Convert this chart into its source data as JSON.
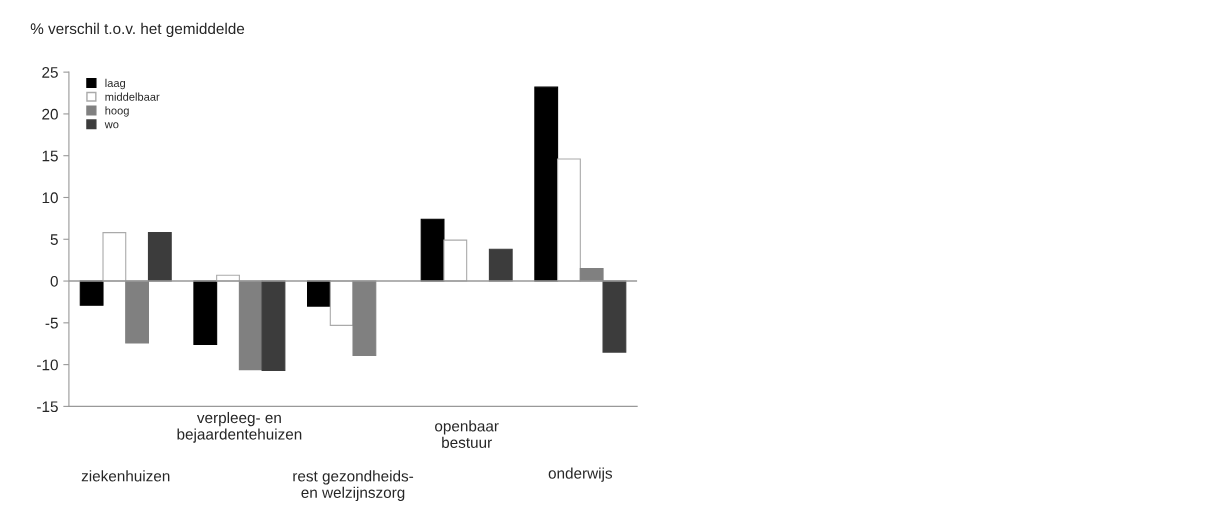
{
  "chart_data": {
    "type": "bar",
    "ylabel": "% verschil t.o.v. het gemiddelde",
    "categories": [
      "ziekenhuizen",
      "verpleeg- en\nbejaardentehuizen",
      "rest gezondheids-\nen welzijnszorg",
      "openbaar\nbestuur",
      "onderwijs"
    ],
    "series": [
      {
        "name": "laag",
        "color": "#000000",
        "values": [
          -2.9,
          -7.6,
          -3.0,
          7.4,
          23.2
        ]
      },
      {
        "name": "middelbaar",
        "color": "#ffffff",
        "values": [
          5.8,
          0.7,
          -5.3,
          4.9,
          14.6
        ]
      },
      {
        "name": "hoog",
        "color": "#808080",
        "values": [
          -7.4,
          -10.6,
          -8.9,
          null,
          1.5
        ]
      },
      {
        "name": "wo",
        "color": "#3c3c3c",
        "values": [
          5.8,
          -10.7,
          null,
          3.8,
          -8.5
        ]
      }
    ],
    "ylim": [
      -15,
      25
    ],
    "yticks": [
      -15,
      -10,
      -5,
      0,
      5,
      10,
      15,
      20,
      25
    ],
    "ref_lines": [
      {
        "axis": "y",
        "value": 0,
        "color": "#999999"
      }
    ],
    "grid": false,
    "legend": "top left"
  }
}
